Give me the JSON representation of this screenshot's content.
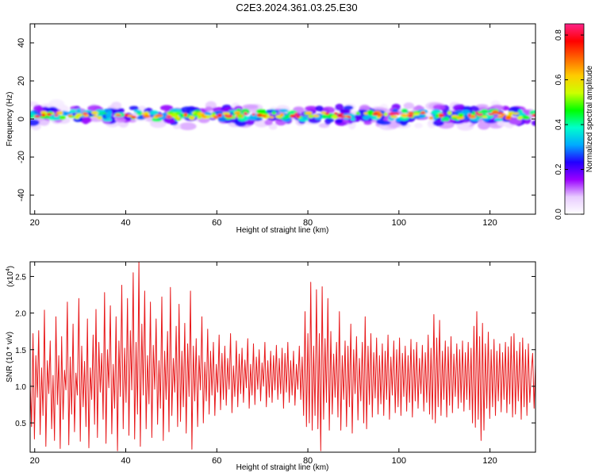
{
  "title": "C2E3.2024.361.03.25.E30",
  "chart_data": [
    {
      "type": "heatmap",
      "xlabel": "Height of straight line (km)",
      "ylabel": "Frequency (Hz)",
      "xlim": [
        19,
        130
      ],
      "ylim": [
        -50,
        50
      ],
      "xticks": [
        20,
        40,
        60,
        80,
        100,
        120
      ],
      "yticks": [
        -40,
        -20,
        0,
        20,
        40
      ],
      "grid": false,
      "colorbar": {
        "label": "Normalized spectral amplitude",
        "range": [
          0.0,
          0.85
        ],
        "ticks": [
          "0.0",
          "0.2",
          "0.4",
          "0.6",
          "0.8"
        ],
        "colormap": [
          "#ffffff",
          "#e8ccff",
          "#9a00ff",
          "#2200ff",
          "#00aaff",
          "#00ffcc",
          "#00ff00",
          "#ccff00",
          "#ffcc00",
          "#ff6600",
          "#ff0000",
          "#ff2288"
        ]
      },
      "band_center_hz": 2,
      "band_halfwidth_hz": 6
    },
    {
      "type": "line",
      "xlabel": "Height of straight line (km)",
      "ylabel": "SNR (10 * v/v)",
      "y_multiplier": "(x10",
      "y_multiplier_exp": "4",
      "xlim": [
        19,
        130
      ],
      "ylim": [
        0.1,
        2.7
      ],
      "xticks": [
        20,
        40,
        60,
        80,
        100,
        120
      ],
      "yticks": [
        "0.5",
        "1.0",
        "1.5",
        "2.0",
        "2.5"
      ],
      "series": [
        {
          "color": "#e8191b",
          "x_start": 19,
          "x_end": 130,
          "y": [
            1.05,
            0.45,
            1.72,
            0.28,
            1.42,
            0.85,
            1.76,
            0.34,
            1.25,
            0.6,
            2.04,
            0.18,
            1.35,
            0.9,
            1.62,
            0.42,
            1.15,
            0.26,
            1.95,
            0.75,
            1.42,
            0.15,
            1.68,
            0.55,
            1.22,
            0.95,
            2.15,
            0.2,
            1.4,
            0.62,
            1.85,
            0.38,
            1.18,
            0.88,
            2.2,
            0.25,
            1.55,
            0.72,
            1.34,
            0.45,
            1.92,
            0.16,
            1.25,
            0.82,
            1.7,
            0.48,
            2.05,
            0.3,
            1.6,
            0.92,
            1.45,
            0.55,
            2.28,
            0.22,
            1.5,
            0.98,
            2.1,
            0.35,
            1.3,
            0.7,
            1.95,
            0.12,
            1.62,
            0.86,
            2.38,
            0.42,
            1.52,
            0.78,
            2.2,
            0.33,
            1.76,
            0.95,
            2.55,
            0.28,
            1.6,
            0.62,
            2.7,
            0.18,
            1.85,
            0.88,
            2.3,
            0.42,
            1.42,
            0.76,
            2.15,
            0.3,
            1.56,
            0.96,
            1.92,
            0.48,
            1.35,
            0.7,
            2.22,
            0.26,
            1.48,
            0.82,
            1.75,
            0.38,
            2.35,
            0.6,
            1.38,
            0.92,
            1.82,
            0.45,
            2.12,
            0.52,
            1.48,
            0.72,
            1.86,
            0.36,
            1.58,
            0.86,
            2.3,
            0.14,
            1.55,
            0.8,
            1.65,
            0.45,
            1.42,
            0.95,
            1.95,
            0.5,
            1.33,
            0.8,
            1.78,
            0.62,
            1.48,
            0.88,
            1.6,
            0.6,
            1.3,
            0.92,
            1.7,
            0.68,
            1.45,
            0.82,
            1.55,
            0.74,
            1.38,
            0.96,
            1.72,
            0.64,
            1.28,
            0.86,
            1.62,
            0.72,
            1.44,
            0.9,
            1.52,
            0.78,
            1.36,
            0.98,
            1.65,
            0.7,
            1.3,
            0.88,
            1.58,
            0.75,
            1.4,
            0.96,
            1.5,
            0.8,
            1.32,
            1.0,
            1.6,
            0.72,
            1.35,
            0.85,
            1.48,
            0.78,
            1.42,
            0.95,
            1.56,
            0.82,
            1.38,
            0.9,
            1.52,
            0.7,
            1.45,
            0.92,
            1.6,
            0.78,
            1.35,
            0.88,
            1.48,
            0.74,
            1.3,
            0.96,
            1.55,
            0.82,
            1.4,
            0.6,
            2.02,
            0.45,
            1.72,
            0.5,
            2.42,
            0.4,
            1.55,
            0.6,
            2.32,
            0.42,
            1.72,
            0.12,
            2.36,
            0.55,
            1.65,
            0.78,
            2.2,
            0.4,
            1.75,
            0.62,
            1.44,
            0.85,
            1.6,
            0.58,
            2.02,
            0.4,
            1.42,
            0.82,
            1.62,
            0.45,
            1.55,
            0.72,
            1.85,
            0.36,
            1.5,
            0.9,
            1.68,
            0.54,
            1.38,
            0.8,
            1.6,
            0.5,
            1.95,
            0.42,
            1.55,
            0.75,
            1.72,
            0.58,
            1.46,
            0.84,
            1.66,
            0.62,
            1.42,
            0.76,
            1.58,
            0.6,
            1.48,
            0.82,
            1.7,
            0.55,
            1.4,
            0.88,
            1.62,
            0.64,
            1.5,
            0.72,
            1.66,
            0.6,
            1.45,
            0.86,
            1.55,
            0.66,
            1.42,
            0.78,
            1.64,
            0.58,
            1.5,
            0.8,
            1.6,
            0.7,
            1.38,
            0.9,
            1.56,
            0.66,
            1.46,
            0.78,
            1.7,
            0.62,
            1.52,
            0.55,
            1.98,
            0.5,
            1.66,
            0.72,
            1.9,
            0.6,
            1.48,
            0.82,
            1.62,
            0.58,
            1.54,
            0.74,
            1.68,
            0.64,
            1.44,
            0.86,
            1.58,
            0.7,
            1.5,
            0.78,
            1.62,
            0.66,
            1.46,
            0.82,
            1.6,
            0.68,
            1.52,
            0.5,
            1.82,
            0.44,
            2.02,
            0.55,
            1.68,
            0.26,
            1.86,
            0.4,
            1.58,
            0.7,
            1.74,
            0.56,
            1.5,
            0.72,
            1.64,
            0.6,
            1.48,
            0.8,
            1.58,
            0.65,
            1.46,
            0.82,
            1.6,
            0.64,
            1.54,
            0.76,
            1.68,
            0.58,
            1.72,
            0.62,
            1.48,
            0.8,
            1.6,
            0.55,
            1.66,
            0.72,
            1.5,
            0.6,
            1.58,
            0.78,
            1.2,
            1.45,
            0.7,
            1.3
          ]
        }
      ]
    }
  ]
}
